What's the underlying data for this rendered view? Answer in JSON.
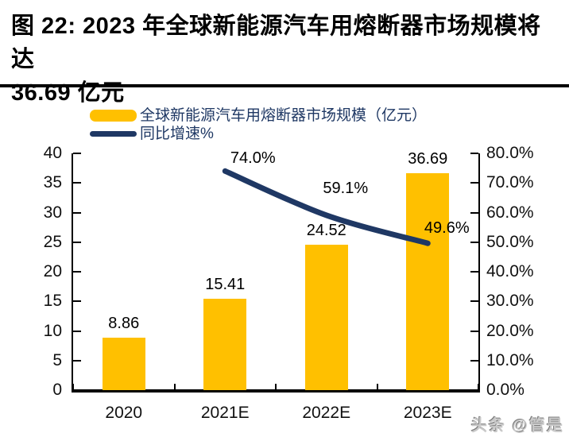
{
  "page": {
    "title_line1": "图 22: 2023 年全球新能源汽车用熔断器市场规模将达",
    "title_line2": "36.69 亿元",
    "watermark": "头条 @管是"
  },
  "colors": {
    "bar": "#FFC000",
    "line": "#1F3864",
    "legend_text": "#1F3864",
    "axis": "#000000",
    "data_label": "#000000"
  },
  "chart_data": {
    "type": "bar",
    "subtype": "combo-bar-line-dual-axis",
    "title": "2023 年全球新能源汽车用熔断器市场规模将达 36.69 亿元",
    "categories": [
      "2020",
      "2021E",
      "2022E",
      "2023E"
    ],
    "series": [
      {
        "name": "全球新能源汽车用熔断器市场规模（亿元）",
        "type": "bar",
        "axis": "left",
        "values": [
          8.86,
          15.41,
          24.52,
          36.69
        ],
        "value_labels": [
          "8.86",
          "15.41",
          "24.52",
          "36.69"
        ]
      },
      {
        "name": "同比增速%",
        "type": "line",
        "axis": "right",
        "values": [
          null,
          74.0,
          59.1,
          49.6
        ],
        "value_labels": [
          "74.0%",
          "59.1%",
          "49.6%"
        ]
      }
    ],
    "left_axis": {
      "min": 0,
      "max": 40,
      "step": 5,
      "tick_labels": [
        "0",
        "5",
        "10",
        "15",
        "20",
        "25",
        "30",
        "35",
        "40"
      ]
    },
    "right_axis": {
      "min": 0,
      "max": 80,
      "step": 10,
      "tick_labels": [
        "0.0%",
        "10.0%",
        "20.0%",
        "30.0%",
        "40.0%",
        "50.0%",
        "60.0%",
        "70.0%",
        "80.0%"
      ]
    },
    "legend_position": "top-left",
    "grid": false
  }
}
